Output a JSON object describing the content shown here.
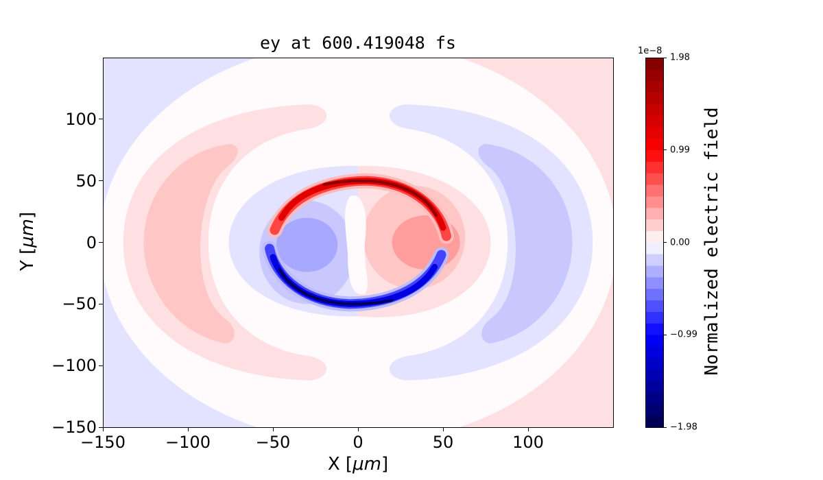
{
  "chart_data": {
    "type": "heatmap",
    "subtype": "filled-contour",
    "title": "ey at 600.419048 fs",
    "xlabel": "X [",
    "xlabel_unit": "μm",
    "ylabel": "Y [",
    "ylabel_unit": "μm",
    "xlim": [
      -150,
      150
    ],
    "ylim": [
      -150,
      150
    ],
    "xticks": [
      "−150",
      "−100",
      "−50",
      "0",
      "50",
      "100"
    ],
    "xtick_values": [
      -150,
      -100,
      -50,
      0,
      50,
      100
    ],
    "yticks": [
      "−150",
      "−100",
      "−50",
      "0",
      "50",
      "100"
    ],
    "ytick_values": [
      -150,
      -100,
      -50,
      0,
      50,
      100
    ],
    "colormap": "seismic",
    "colorbar": {
      "label": "Normalized electric field",
      "offset_text": "1e−8",
      "range": [
        -1.98e-08,
        1.98e-08
      ],
      "ticks": [
        "−1.98",
        "−0.99",
        "0.00",
        "0.99",
        "1.98"
      ],
      "tick_values": [
        -1.98,
        -0.99,
        0.0,
        0.99,
        1.98
      ],
      "levels": 32
    },
    "features": [
      "red arc from (-49,10) over (0,50) to (53,4), peak +1.98e-8",
      "blue arc from (49,-10) under (0,-50) to (-50,-5), peak -1.98e-8",
      "negative lobe centered near (-30,0); positive lobe near (40,0)",
      "outer crescents: positive at x<0, negative at x>0; corners negative left, positive right"
    ]
  }
}
